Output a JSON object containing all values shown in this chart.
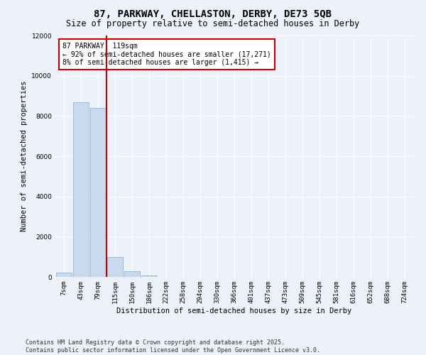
{
  "title_line1": "87, PARKWAY, CHELLASTON, DERBY, DE73 5QB",
  "title_line2": "Size of property relative to semi-detached houses in Derby",
  "xlabel": "Distribution of semi-detached houses by size in Derby",
  "ylabel": "Number of semi-detached properties",
  "categories": [
    "7sqm",
    "43sqm",
    "79sqm",
    "115sqm",
    "150sqm",
    "186sqm",
    "222sqm",
    "258sqm",
    "294sqm",
    "330sqm",
    "366sqm",
    "401sqm",
    "437sqm",
    "473sqm",
    "509sqm",
    "545sqm",
    "581sqm",
    "616sqm",
    "652sqm",
    "688sqm",
    "724sqm"
  ],
  "values": [
    200,
    8700,
    8400,
    1000,
    300,
    80,
    10,
    0,
    0,
    0,
    0,
    0,
    0,
    0,
    0,
    0,
    0,
    0,
    0,
    0,
    0
  ],
  "bar_color": "#c9d9f0",
  "bar_edge_color": "#7fa8d0",
  "highlight_line_color": "#cc0000",
  "annotation_text": "87 PARKWAY: 119sqm\n← 92% of semi-detached houses are smaller (17,271)\n8% of semi-detached houses are larger (1,415) →",
  "annotation_box_color": "#ffffff",
  "annotation_box_edge_color": "#cc0000",
  "ylim": [
    0,
    12000
  ],
  "yticks": [
    0,
    2000,
    4000,
    6000,
    8000,
    10000,
    12000
  ],
  "background_color": "#edf1f9",
  "footer_text": "Contains HM Land Registry data © Crown copyright and database right 2025.\nContains public sector information licensed under the Open Government Licence v3.0.",
  "title_fontsize": 10,
  "subtitle_fontsize": 8.5,
  "axis_label_fontsize": 7.5,
  "tick_fontsize": 6.5,
  "annotation_fontsize": 7,
  "footer_fontsize": 6
}
